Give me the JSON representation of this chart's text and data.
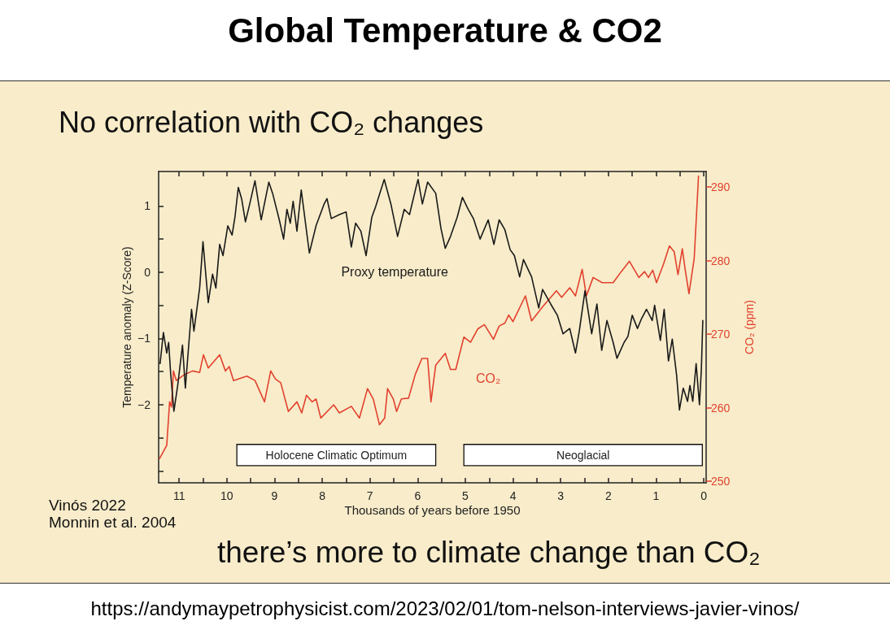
{
  "chart_data": {
    "type": "line",
    "title": "Global Temperature & CO2",
    "subtitle": "No correlation with CO₂ changes",
    "xlabel": "Thousands of years before 1950",
    "ylabel": "Temperature anomaly (Z-Score)",
    "y2label": "CO₂ (ppm)",
    "annotations": [
      "Vinós 2022",
      "Monnin et al. 2004",
      "there’s more to climate change than CO₂",
      "https://andymaypetrophysicist.com/2023/02/01/tom-nelson-interviews-javier-vinos/"
    ],
    "series": [
      {
        "name": "Proxy temperature",
        "color": "#1a1a1a",
        "x": [
          11.4,
          11.33,
          11.26,
          11.22,
          11.18,
          11.11,
          11.03,
          10.93,
          10.87,
          10.74,
          10.69,
          10.57,
          10.5,
          10.39,
          10.3,
          10.23,
          10.15,
          10.08,
          9.98,
          9.89,
          9.83,
          9.76,
          9.69,
          9.61,
          9.52,
          9.41,
          9.28,
          9.12,
          9.04,
          8.9,
          8.81,
          8.74,
          8.67,
          8.61,
          8.53,
          8.44,
          8.27,
          8.13,
          7.96,
          7.9,
          7.81,
          7.64,
          7.5,
          7.39,
          7.3,
          7.19,
          7.08,
          6.96,
          6.88,
          6.7,
          6.56,
          6.42,
          6.28,
          6.17,
          6.02,
          5.99,
          5.9,
          5.79,
          5.62,
          5.51,
          5.42,
          5.31,
          5.17,
          5.06,
          4.94,
          4.83,
          4.69,
          4.52,
          4.4,
          4.29,
          4.17,
          4.06,
          3.97,
          3.86,
          3.78,
          3.61,
          3.46,
          3.38,
          3.21,
          3.07,
          2.95,
          2.81,
          2.69,
          2.61,
          2.49,
          2.35,
          2.24,
          2.14,
          2.03,
          1.9,
          1.82,
          1.67,
          1.59,
          1.5,
          1.39,
          1.31,
          1.2,
          1.08,
          1.03,
          0.91,
          0.83,
          0.74,
          0.66,
          0.57,
          0.51,
          0.43,
          0.34,
          0.29,
          0.23,
          0.16,
          0.09,
          0.05,
          0.02
        ],
        "values": [
          -1.38,
          -0.91,
          -1.22,
          -1.06,
          -1.51,
          -2.1,
          -1.71,
          -1.1,
          -1.75,
          -0.56,
          -0.89,
          -0.24,
          0.46,
          -0.46,
          -0.03,
          -0.24,
          0.42,
          0.25,
          0.7,
          0.56,
          0.83,
          1.28,
          1.11,
          0.76,
          1.03,
          1.38,
          0.79,
          1.36,
          1.19,
          0.79,
          0.5,
          0.95,
          0.74,
          1.07,
          0.62,
          1.24,
          0.29,
          0.7,
          1.03,
          1.11,
          0.81,
          0.87,
          0.91,
          0.38,
          0.74,
          0.62,
          0.25,
          0.83,
          0.99,
          1.4,
          1.03,
          0.54,
          0.95,
          0.87,
          1.32,
          1.4,
          1.03,
          1.36,
          1.19,
          0.66,
          0.36,
          0.54,
          0.83,
          1.13,
          0.95,
          0.81,
          0.5,
          0.79,
          0.42,
          0.79,
          0.64,
          0.34,
          0.25,
          -0.07,
          0.19,
          -0.07,
          -0.54,
          -0.26,
          -0.48,
          -0.65,
          -0.93,
          -0.85,
          -1.22,
          -0.89,
          -0.28,
          -0.93,
          -0.48,
          -1.18,
          -0.73,
          -1.06,
          -1.3,
          -1.06,
          -0.97,
          -0.65,
          -0.85,
          -0.71,
          -0.56,
          -0.73,
          -0.5,
          -1.03,
          -0.56,
          -1.34,
          -1.01,
          -1.55,
          -2.08,
          -1.75,
          -1.95,
          -1.71,
          -1.95,
          -1.38,
          -2.0,
          -1.46,
          -0.73
        ]
      },
      {
        "name": "CO₂",
        "color": "#e2412e",
        "axis": "y2",
        "x": [
          11.41,
          11.26,
          11.2,
          11.16,
          11.12,
          11.06,
          10.89,
          10.72,
          10.57,
          10.49,
          10.39,
          10.15,
          10.03,
          9.95,
          9.86,
          9.58,
          9.41,
          9.21,
          9.08,
          8.98,
          8.87,
          8.71,
          8.53,
          8.43,
          8.33,
          8.21,
          8.13,
          8.03,
          7.76,
          7.64,
          7.39,
          7.22,
          7.05,
          6.93,
          6.8,
          6.69,
          6.63,
          6.51,
          6.44,
          6.34,
          6.19,
          6.05,
          5.91,
          5.79,
          5.72,
          5.62,
          5.42,
          5.31,
          5.2,
          5.03,
          4.89,
          4.74,
          4.6,
          4.41,
          4.29,
          4.17,
          4.09,
          4.0,
          3.74,
          3.61,
          3.38,
          3.09,
          2.98,
          2.81,
          2.69,
          2.55,
          2.46,
          2.32,
          2.13,
          1.9,
          1.73,
          1.56,
          1.36,
          1.24,
          1.16,
          1.07,
          0.99,
          0.84,
          0.72,
          0.62,
          0.54,
          0.45,
          0.39,
          0.31,
          0.2,
          0.11
        ],
        "values": [
          253.1,
          254.9,
          260.8,
          260.1,
          265.0,
          263.7,
          264.5,
          265.0,
          264.8,
          267.2,
          265.4,
          267.2,
          265.0,
          265.6,
          263.7,
          264.3,
          263.7,
          260.8,
          265.0,
          263.9,
          263.4,
          259.5,
          260.8,
          259.3,
          261.7,
          260.8,
          261.2,
          258.6,
          260.4,
          259.3,
          260.2,
          258.6,
          262.6,
          261.2,
          257.7,
          258.6,
          262.6,
          261.2,
          259.5,
          261.2,
          261.3,
          264.5,
          266.7,
          266.7,
          260.8,
          265.8,
          267.4,
          265.2,
          265.2,
          269.6,
          268.9,
          270.7,
          271.3,
          269.3,
          271.1,
          271.5,
          272.6,
          271.7,
          275.2,
          271.8,
          273.7,
          275.9,
          275.0,
          276.3,
          275.2,
          278.8,
          275.2,
          277.7,
          277.0,
          277.0,
          278.5,
          279.9,
          277.7,
          278.5,
          277.7,
          278.7,
          277.0,
          279.6,
          282.0,
          281.2,
          278.1,
          281.6,
          278.8,
          275.5,
          280.3,
          291.5
        ]
      }
    ],
    "xlim": [
      11.43,
      -0.05
    ],
    "xticks": [
      0,
      {
        "value": 0.5,
        "label": null
      },
      1,
      {
        "value": 1.5,
        "label": null
      },
      2,
      {
        "value": 2.5,
        "label": null
      },
      3,
      {
        "value": 3.5,
        "label": null
      },
      4,
      {
        "value": 4.5,
        "label": null
      },
      5,
      {
        "value": 5.5,
        "label": null
      },
      6,
      {
        "value": 6.5,
        "label": null
      },
      7,
      {
        "value": 7.5,
        "label": null
      },
      8,
      {
        "value": 8.5,
        "label": null
      },
      9,
      {
        "value": 9.5,
        "label": null
      },
      10,
      {
        "value": 10.5,
        "label": null
      },
      11
    ],
    "ylim": [
      -3.18,
      1.52
    ],
    "yticks": [
      {
        "value": -3,
        "label": null
      },
      {
        "value": -2.5,
        "label": null
      },
      {
        "value": -2,
        "label": "−2"
      },
      {
        "value": -1.5,
        "label": null
      },
      {
        "value": -1,
        "label": "−1"
      },
      {
        "value": -0.5,
        "label": null
      },
      0,
      {
        "value": 0.5,
        "label": null
      },
      1
    ],
    "y2lim": [
      249.8,
      292.1
    ],
    "y2ticks": [
      250,
      260,
      270,
      280,
      290
    ],
    "bands": [
      {
        "axis": "x",
        "from": 9.79,
        "to": 5.62,
        "label": "Holocene Climatic Optimum",
        "color": "#ffffff"
      },
      {
        "axis": "x",
        "from": 5.03,
        "to": 0.03,
        "label": "Neoglacial",
        "color": "#ffffff"
      }
    ],
    "marker": "none",
    "line_style": "solid",
    "grid": false,
    "legend": false
  }
}
